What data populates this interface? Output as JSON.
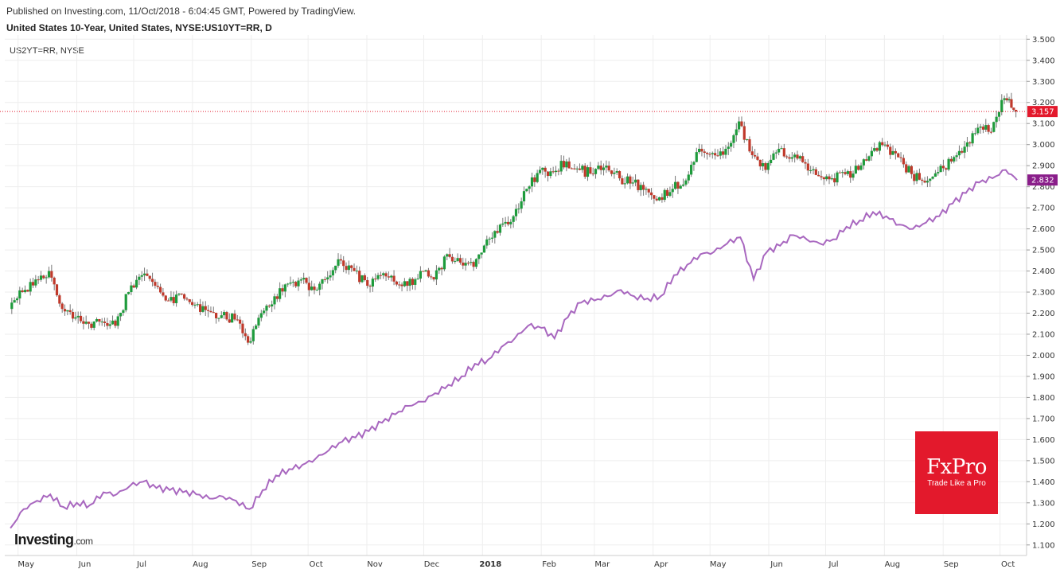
{
  "header": {
    "published": "Published on Investing.com, 11/Oct/2018 - 6:04:45 GMT, Powered by TradingView.",
    "title": "United States 10-Year, United States, NYSE:US10YT=RR, D",
    "compare_label": "US2YT=RR, NYSE"
  },
  "logos": {
    "investing": "Investing",
    "investing_suffix": ".com",
    "fxpro_name": "FxPro",
    "fxpro_tagline": "Trade Like a Pro"
  },
  "colors": {
    "up": "#1e9b3c",
    "down": "#c0392b",
    "compare_line": "#a867bf",
    "last_price_badge": "#e3192c",
    "compare_badge": "#8a1e8a",
    "grid": "#eeeeee",
    "fxpro_bg": "#e3192c"
  },
  "chart_data": {
    "type": "line",
    "title": "United States 10-Year, United States, NYSE:US10YT=RR, D",
    "ylim": [
      1.05,
      3.52
    ],
    "y_ticks": [
      "3.500",
      "3.400",
      "3.300",
      "3.200",
      "3.100",
      "3.000",
      "2.900",
      "2.800",
      "2.700",
      "2.600",
      "2.500",
      "2.400",
      "2.300",
      "2.200",
      "2.100",
      "2.000",
      "1.900",
      "1.800",
      "1.700",
      "1.600",
      "1.500",
      "1.400",
      "1.300",
      "1.200",
      "1.100"
    ],
    "x_ticks": [
      "May",
      "Jun",
      "Jul",
      "Aug",
      "Sep",
      "Oct",
      "Nov",
      "Dec",
      "2018",
      "Feb",
      "Mar",
      "Apr",
      "May",
      "Jun",
      "Jul",
      "Aug",
      "Sep",
      "Oct"
    ],
    "last_values": {
      "main": "3.157",
      "compare": "2.832"
    },
    "series": [
      {
        "name": "United States 10-Year",
        "style": "candlestick",
        "x": [
          "2017-04-27",
          "2017-05-04",
          "2017-05-11",
          "2017-05-18",
          "2017-05-25",
          "2017-06-01",
          "2017-06-08",
          "2017-06-15",
          "2017-06-22",
          "2017-06-29",
          "2017-07-06",
          "2017-07-13",
          "2017-07-20",
          "2017-07-27",
          "2017-08-03",
          "2017-08-10",
          "2017-08-17",
          "2017-08-24",
          "2017-08-31",
          "2017-09-07",
          "2017-09-14",
          "2017-09-21",
          "2017-09-28",
          "2017-10-05",
          "2017-10-12",
          "2017-10-19",
          "2017-10-26",
          "2017-11-02",
          "2017-11-09",
          "2017-11-16",
          "2017-11-23",
          "2017-11-30",
          "2017-12-07",
          "2017-12-14",
          "2017-12-21",
          "2017-12-28",
          "2018-01-04",
          "2018-01-11",
          "2018-01-18",
          "2018-01-25",
          "2018-02-01",
          "2018-02-08",
          "2018-02-15",
          "2018-02-22",
          "2018-03-01",
          "2018-03-08",
          "2018-03-15",
          "2018-03-22",
          "2018-03-29",
          "2018-04-05",
          "2018-04-12",
          "2018-04-19",
          "2018-04-26",
          "2018-05-03",
          "2018-05-10",
          "2018-05-17",
          "2018-05-24",
          "2018-05-31",
          "2018-06-07",
          "2018-06-14",
          "2018-06-21",
          "2018-06-28",
          "2018-07-05",
          "2018-07-12",
          "2018-07-19",
          "2018-07-26",
          "2018-08-02",
          "2018-08-09",
          "2018-08-16",
          "2018-08-23",
          "2018-08-30",
          "2018-09-06",
          "2018-09-13",
          "2018-09-20",
          "2018-09-27",
          "2018-10-04",
          "2018-10-10"
        ],
        "values": [
          2.22,
          2.3,
          2.36,
          2.4,
          2.22,
          2.18,
          2.15,
          2.16,
          2.14,
          2.3,
          2.38,
          2.33,
          2.26,
          2.29,
          2.24,
          2.21,
          2.19,
          2.17,
          2.06,
          2.2,
          2.28,
          2.34,
          2.36,
          2.31,
          2.37,
          2.45,
          2.4,
          2.33,
          2.38,
          2.35,
          2.33,
          2.4,
          2.36,
          2.48,
          2.44,
          2.42,
          2.55,
          2.62,
          2.66,
          2.79,
          2.88,
          2.87,
          2.92,
          2.88,
          2.86,
          2.9,
          2.84,
          2.82,
          2.79,
          2.75,
          2.79,
          2.83,
          2.98,
          2.96,
          2.98,
          3.11,
          2.95,
          2.88,
          2.98,
          2.94,
          2.91,
          2.85,
          2.84,
          2.86,
          2.88,
          2.97,
          3.0,
          2.94,
          2.86,
          2.82,
          2.87,
          2.92,
          2.99,
          3.08,
          3.06,
          3.22,
          3.157
        ]
      },
      {
        "name": "US2YT=RR, NYSE",
        "style": "line",
        "x": [
          "2017-04-27",
          "2017-05-04",
          "2017-05-11",
          "2017-05-18",
          "2017-05-25",
          "2017-06-01",
          "2017-06-08",
          "2017-06-15",
          "2017-06-22",
          "2017-06-29",
          "2017-07-06",
          "2017-07-13",
          "2017-07-20",
          "2017-07-27",
          "2017-08-03",
          "2017-08-10",
          "2017-08-17",
          "2017-08-24",
          "2017-08-31",
          "2017-09-07",
          "2017-09-14",
          "2017-09-21",
          "2017-09-28",
          "2017-10-05",
          "2017-10-12",
          "2017-10-19",
          "2017-10-26",
          "2017-11-02",
          "2017-11-09",
          "2017-11-16",
          "2017-11-23",
          "2017-11-30",
          "2017-12-07",
          "2017-12-14",
          "2017-12-21",
          "2017-12-28",
          "2018-01-04",
          "2018-01-11",
          "2018-01-18",
          "2018-01-25",
          "2018-02-01",
          "2018-02-08",
          "2018-02-15",
          "2018-02-22",
          "2018-03-01",
          "2018-03-08",
          "2018-03-15",
          "2018-03-22",
          "2018-03-29",
          "2018-04-05",
          "2018-04-12",
          "2018-04-19",
          "2018-04-26",
          "2018-05-03",
          "2018-05-10",
          "2018-05-17",
          "2018-05-24",
          "2018-05-31",
          "2018-06-07",
          "2018-06-14",
          "2018-06-21",
          "2018-06-28",
          "2018-07-05",
          "2018-07-12",
          "2018-07-19",
          "2018-07-26",
          "2018-08-02",
          "2018-08-09",
          "2018-08-16",
          "2018-08-23",
          "2018-08-30",
          "2018-09-06",
          "2018-09-13",
          "2018-09-20",
          "2018-09-27",
          "2018-10-04",
          "2018-10-10"
        ],
        "values": [
          1.18,
          1.27,
          1.31,
          1.34,
          1.28,
          1.3,
          1.29,
          1.35,
          1.34,
          1.38,
          1.4,
          1.37,
          1.36,
          1.35,
          1.34,
          1.32,
          1.33,
          1.31,
          1.27,
          1.36,
          1.43,
          1.46,
          1.48,
          1.51,
          1.55,
          1.59,
          1.61,
          1.64,
          1.68,
          1.72,
          1.76,
          1.78,
          1.82,
          1.86,
          1.9,
          1.96,
          1.98,
          2.04,
          2.08,
          2.14,
          2.13,
          2.08,
          2.18,
          2.25,
          2.26,
          2.28,
          2.31,
          2.28,
          2.27,
          2.28,
          2.38,
          2.43,
          2.48,
          2.49,
          2.53,
          2.56,
          2.36,
          2.49,
          2.52,
          2.57,
          2.55,
          2.53,
          2.55,
          2.61,
          2.64,
          2.68,
          2.66,
          2.62,
          2.6,
          2.63,
          2.66,
          2.72,
          2.77,
          2.82,
          2.84,
          2.88,
          2.832
        ]
      }
    ],
    "legend": "none",
    "grid": true
  }
}
